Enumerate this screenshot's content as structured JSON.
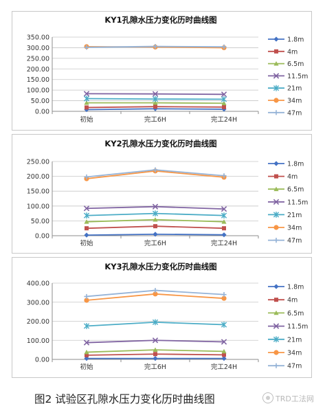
{
  "figure": {
    "caption": "图2  试验区孔隙水压力变化历时曲线图",
    "watermark_text": "TRD工法网",
    "watermark_icon": "trd-logo-icon"
  },
  "chart_data": [
    {
      "type": "line",
      "title": "KY1孔隙水压力变化历时曲线图",
      "categories": [
        "初始",
        "完工6H",
        "完工24H"
      ],
      "ylim": [
        0,
        350
      ],
      "yticks": [
        "0.00",
        "50.00",
        "100.00",
        "150.00",
        "200.00",
        "250.00",
        "300.00",
        "350.00"
      ],
      "grid": true,
      "legend": "right",
      "series": [
        {
          "name": "1.8m",
          "color": "#4472c4",
          "marker": "diamond",
          "values": [
            8,
            12,
            10
          ]
        },
        {
          "name": "4m",
          "color": "#c0504d",
          "marker": "square",
          "values": [
            18,
            22,
            20
          ]
        },
        {
          "name": "6.5m",
          "color": "#9bbb59",
          "marker": "triangle",
          "values": [
            40,
            40,
            38
          ]
        },
        {
          "name": "11.5m",
          "color": "#8064a2",
          "marker": "x",
          "values": [
            83,
            82,
            80
          ]
        },
        {
          "name": "21m",
          "color": "#4bacc6",
          "marker": "star",
          "values": [
            60,
            58,
            57
          ]
        },
        {
          "name": "34m",
          "color": "#f79646",
          "marker": "circle",
          "values": [
            305,
            303,
            300
          ]
        },
        {
          "name": "47m",
          "color": "#95b3d7",
          "marker": "plus",
          "values": [
            302,
            306,
            304
          ]
        }
      ]
    },
    {
      "type": "line",
      "title": "KY2孔隙水压力变化历时曲线图",
      "categories": [
        "初始",
        "完工6H",
        "完工24H"
      ],
      "ylim": [
        0,
        250
      ],
      "yticks": [
        "0.00",
        "50.00",
        "100.00",
        "150.00",
        "200.00",
        "250.00"
      ],
      "grid": true,
      "legend": "right",
      "series": [
        {
          "name": "1.8m",
          "color": "#4472c4",
          "marker": "diamond",
          "values": [
            2,
            5,
            3
          ]
        },
        {
          "name": "4m",
          "color": "#c0504d",
          "marker": "square",
          "values": [
            25,
            32,
            25
          ]
        },
        {
          "name": "6.5m",
          "color": "#9bbb59",
          "marker": "triangle",
          "values": [
            47,
            54,
            47
          ]
        },
        {
          "name": "11.5m",
          "color": "#8064a2",
          "marker": "x",
          "values": [
            92,
            98,
            90
          ]
        },
        {
          "name": "21m",
          "color": "#4bacc6",
          "marker": "star",
          "values": [
            68,
            75,
            68
          ]
        },
        {
          "name": "34m",
          "color": "#f79646",
          "marker": "circle",
          "values": [
            192,
            218,
            197
          ]
        },
        {
          "name": "47m",
          "color": "#95b3d7",
          "marker": "plus",
          "values": [
            198,
            222,
            202
          ]
        }
      ]
    },
    {
      "type": "line",
      "title": "KY3孔隙水压力变化历时曲线图",
      "categories": [
        "初始",
        "完工6H",
        "完工24H"
      ],
      "ylim": [
        0,
        400
      ],
      "yticks": [
        "0.00",
        "100.00",
        "200.00",
        "300.00",
        "400.00"
      ],
      "grid": true,
      "legend": "right",
      "series": [
        {
          "name": "1.8m",
          "color": "#4472c4",
          "marker": "diamond",
          "values": [
            5,
            5,
            5
          ]
        },
        {
          "name": "4m",
          "color": "#c0504d",
          "marker": "square",
          "values": [
            22,
            28,
            24
          ]
        },
        {
          "name": "6.5m",
          "color": "#9bbb59",
          "marker": "triangle",
          "values": [
            38,
            50,
            42
          ]
        },
        {
          "name": "11.5m",
          "color": "#8064a2",
          "marker": "x",
          "values": [
            88,
            100,
            92
          ]
        },
        {
          "name": "21m",
          "color": "#4bacc6",
          "marker": "star",
          "values": [
            175,
            195,
            182
          ]
        },
        {
          "name": "34m",
          "color": "#f79646",
          "marker": "circle",
          "values": [
            310,
            343,
            320
          ]
        },
        {
          "name": "47m",
          "color": "#95b3d7",
          "marker": "plus",
          "values": [
            330,
            362,
            340
          ]
        }
      ]
    }
  ]
}
